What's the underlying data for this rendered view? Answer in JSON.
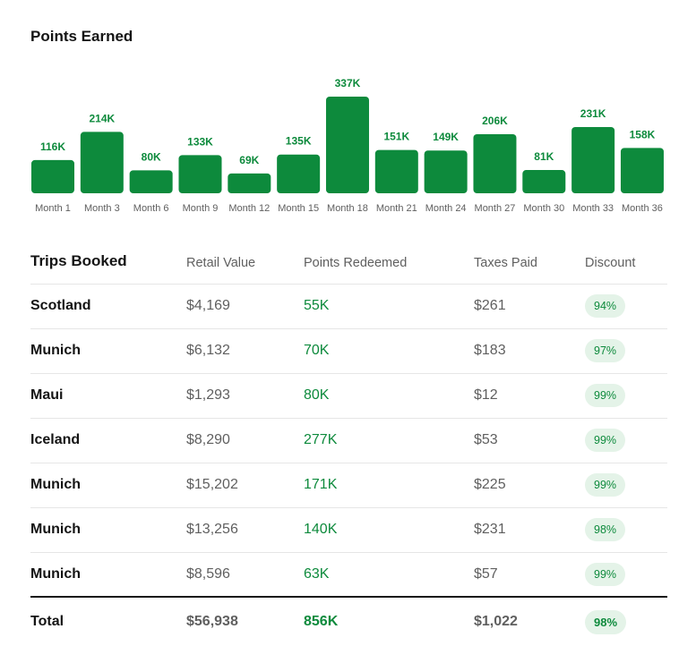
{
  "chart_data": {
    "type": "bar",
    "title": "Points Earned",
    "categories": [
      "Month 1",
      "Month 3",
      "Month 6",
      "Month 9",
      "Month 12",
      "Month 15",
      "Month 18",
      "Month 21",
      "Month 24",
      "Month 27",
      "Month 30",
      "Month 33",
      "Month 36"
    ],
    "values": [
      116,
      214,
      80,
      133,
      69,
      135,
      337,
      151,
      149,
      206,
      81,
      231,
      158
    ],
    "value_labels": [
      "116K",
      "214K",
      "80K",
      "133K",
      "69K",
      "135K",
      "337K",
      "151K",
      "149K",
      "206K",
      "81K",
      "231K",
      "158K"
    ],
    "unit": "K",
    "grid": false,
    "color": "#0d8a3c"
  },
  "table": {
    "title": "Trips Booked",
    "headers": [
      "Retail Value",
      "Points Redeemed",
      "Taxes Paid",
      "Discount"
    ],
    "rows": [
      {
        "destination": "Scotland",
        "retail": "$4,169",
        "points": "55K",
        "taxes": "$261",
        "discount": "94%"
      },
      {
        "destination": "Munich",
        "retail": "$6,132",
        "points": "70K",
        "taxes": "$183",
        "discount": "97%"
      },
      {
        "destination": "Maui",
        "retail": "$1,293",
        "points": "80K",
        "taxes": "$12",
        "discount": "99%"
      },
      {
        "destination": "Iceland",
        "retail": "$8,290",
        "points": "277K",
        "taxes": "$53",
        "discount": "99%"
      },
      {
        "destination": "Munich",
        "retail": "$15,202",
        "points": "171K",
        "taxes": "$225",
        "discount": "99%"
      },
      {
        "destination": "Munich",
        "retail": "$13,256",
        "points": "140K",
        "taxes": "$231",
        "discount": "98%"
      },
      {
        "destination": "Munich",
        "retail": "$8,596",
        "points": "63K",
        "taxes": "$57",
        "discount": "99%"
      }
    ],
    "total": {
      "label": "Total",
      "retail": "$56,938",
      "points": "856K",
      "taxes": "$1,022",
      "discount": "98%"
    }
  },
  "colors": {
    "accent": "#0d8a3c",
    "pill_bg": "#e4f3e8",
    "muted_text": "#5f5f5f"
  }
}
